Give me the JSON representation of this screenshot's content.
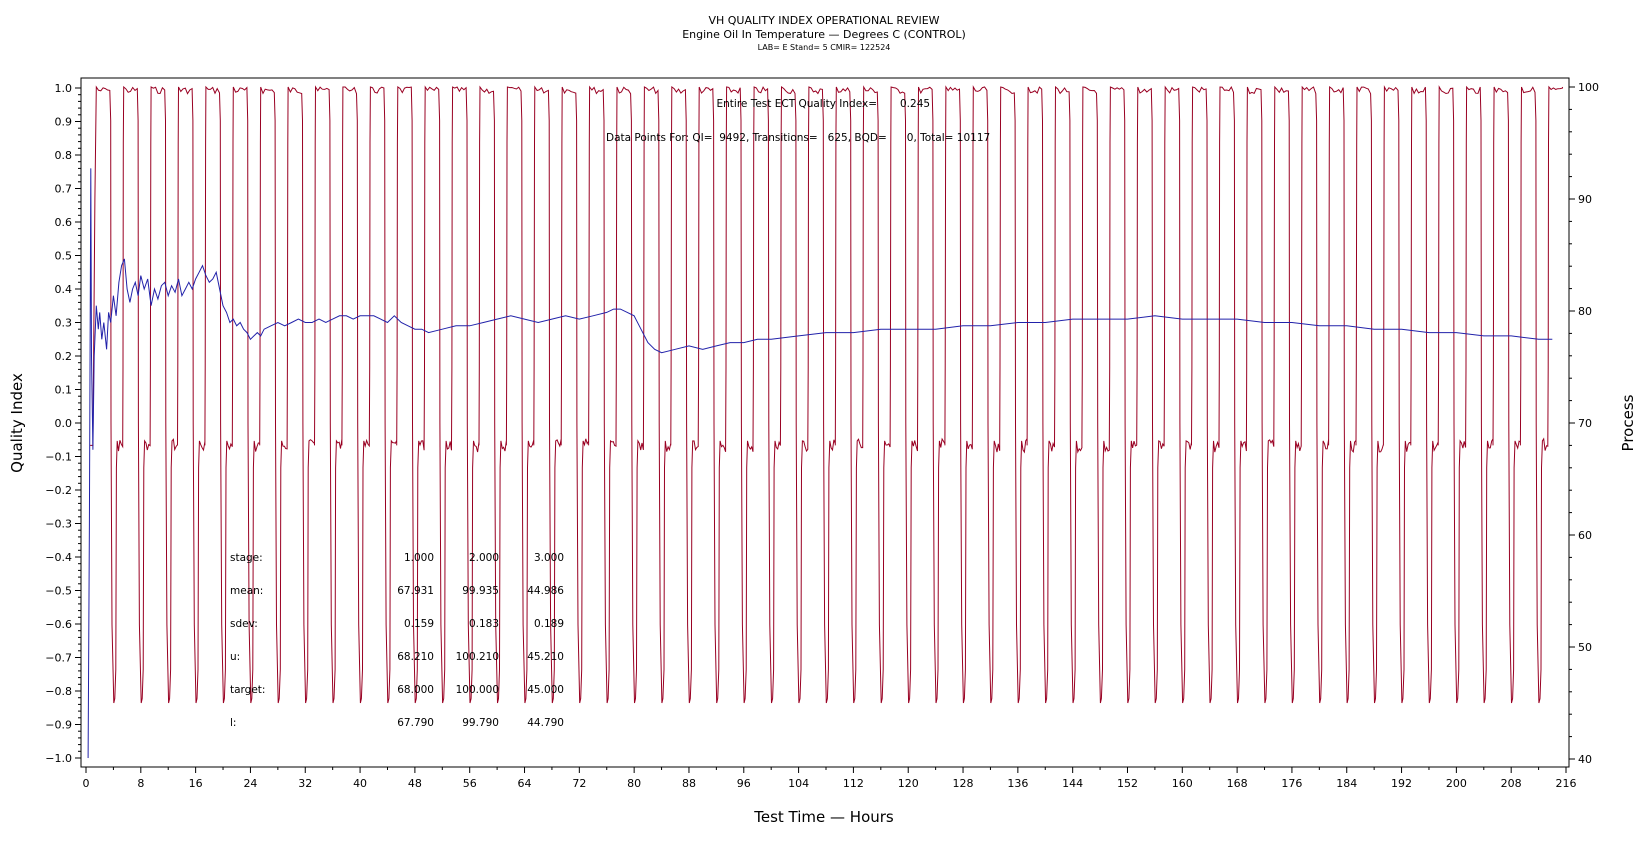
{
  "chart_data": {
    "type": "line",
    "title": "VH QUALITY INDEX OPERATIONAL REVIEW",
    "subtitle": "Engine Oil In Temperature — Degrees C (CONTROL)",
    "subtitle2": "LAB= E Stand= 5 CMIR= 122524",
    "xlabel": "Test Time — Hours",
    "ylabel": "Quality Index",
    "y2label": "Process",
    "xlim": [
      0,
      216
    ],
    "ylim": [
      -1.0,
      1.0
    ],
    "y2lim": [
      40,
      100
    ],
    "xticks": [
      "0",
      "8",
      "16",
      "24",
      "32",
      "40",
      "48",
      "56",
      "64",
      "72",
      "80",
      "88",
      "96",
      "104",
      "112",
      "120",
      "128",
      "136",
      "144",
      "152",
      "160",
      "168",
      "176",
      "184",
      "192",
      "200",
      "208",
      "216"
    ],
    "yticks": [
      "1.0",
      "0.9",
      "0.8",
      "0.7",
      "0.6",
      "0.5",
      "0.4",
      "0.3",
      "0.2",
      "0.1",
      "0.0",
      "-0.1",
      "-0.2",
      "-0.3",
      "-0.4",
      "-0.5",
      "-0.6",
      "-0.7",
      "-0.8",
      "-0.9",
      "-1.0"
    ],
    "y2ticks": [
      "100",
      "90",
      "80",
      "70",
      "60",
      "50",
      "40"
    ],
    "grid": false,
    "annotations": {
      "qi_label": "Entire Test ECT Quality Index=",
      "qi_value": "0.245",
      "points_line": "Data Points For: QI=  9492, Transitions=   625, BQD=      0, Total= 10117"
    },
    "stats_table": {
      "rows": [
        {
          "label": "stage:",
          "values": [
            "1.000",
            "2.000",
            "3.000"
          ]
        },
        {
          "label": "mean:",
          "values": [
            "67.931",
            "99.935",
            "44.986"
          ]
        },
        {
          "label": "sdev:",
          "values": [
            "0.159",
            "0.183",
            "0.189"
          ]
        },
        {
          "label": "u:",
          "values": [
            "68.210",
            "100.210",
            "45.210"
          ]
        },
        {
          "label": "target:",
          "values": [
            "68.000",
            "100.000",
            "45.000"
          ]
        },
        {
          "label": "l:",
          "values": [
            "67.790",
            "99.790",
            "44.790"
          ]
        }
      ]
    },
    "series": [
      {
        "name": "Quality Index",
        "axis": "left",
        "color": "#2222aa",
        "x": [
          0.3,
          0.5,
          0.7,
          0.8,
          1.0,
          1.2,
          1.5,
          1.8,
          2.0,
          2.3,
          2.6,
          3.0,
          3.3,
          3.6,
          4.0,
          4.4,
          4.8,
          5.2,
          5.6,
          6.0,
          6.4,
          6.8,
          7.2,
          7.6,
          8.0,
          8.5,
          9.0,
          9.5,
          10.0,
          10.5,
          11.0,
          11.5,
          12.0,
          12.5,
          13.0,
          13.5,
          14.0,
          14.5,
          15.0,
          15.5,
          16.0,
          16.5,
          17.0,
          17.5,
          18.0,
          18.5,
          19.0,
          19.5,
          20.0,
          20.5,
          21.0,
          21.5,
          22.0,
          22.5,
          23.0,
          23.5,
          24.0,
          24.5,
          25.0,
          25.5,
          26.0,
          27.0,
          28.0,
          29.0,
          30.0,
          31.0,
          32.0,
          33.0,
          34.0,
          35.0,
          36.0,
          37.0,
          38.0,
          39.0,
          40.0,
          41.0,
          42.0,
          43.0,
          44.0,
          45.0,
          46.0,
          47.0,
          48.0,
          49.0,
          50.0,
          52.0,
          54.0,
          56.0,
          58.0,
          60.0,
          62.0,
          64.0,
          66.0,
          68.0,
          70.0,
          72.0,
          74.0,
          76.0,
          77.0,
          78.0,
          79.0,
          80.0,
          81.0,
          82.0,
          83.0,
          84.0,
          86.0,
          88.0,
          90.0,
          92.0,
          94.0,
          96.0,
          98.0,
          100.0,
          104.0,
          108.0,
          112.0,
          116.0,
          120.0,
          124.0,
          128.0,
          132.0,
          136.0,
          140.0,
          144.0,
          148.0,
          152.0,
          156.0,
          160.0,
          164.0,
          168.0,
          172.0,
          176.0,
          180.0,
          184.0,
          188.0,
          192.0,
          196.0,
          200.0,
          204.0,
          208.0,
          212.0,
          214.0
        ],
        "values": [
          -1.0,
          -0.3,
          0.76,
          0.2,
          -0.08,
          0.2,
          0.35,
          0.28,
          0.33,
          0.25,
          0.3,
          0.22,
          0.33,
          0.3,
          0.38,
          0.32,
          0.42,
          0.47,
          0.49,
          0.4,
          0.36,
          0.4,
          0.42,
          0.38,
          0.44,
          0.4,
          0.43,
          0.35,
          0.4,
          0.37,
          0.41,
          0.42,
          0.38,
          0.41,
          0.39,
          0.43,
          0.38,
          0.4,
          0.42,
          0.4,
          0.43,
          0.45,
          0.47,
          0.44,
          0.42,
          0.43,
          0.45,
          0.4,
          0.35,
          0.33,
          0.3,
          0.31,
          0.29,
          0.3,
          0.28,
          0.27,
          0.25,
          0.26,
          0.27,
          0.26,
          0.28,
          0.29,
          0.3,
          0.29,
          0.3,
          0.31,
          0.3,
          0.3,
          0.31,
          0.3,
          0.31,
          0.32,
          0.32,
          0.31,
          0.32,
          0.32,
          0.32,
          0.31,
          0.3,
          0.32,
          0.3,
          0.29,
          0.28,
          0.28,
          0.27,
          0.28,
          0.29,
          0.29,
          0.3,
          0.31,
          0.32,
          0.31,
          0.3,
          0.31,
          0.32,
          0.31,
          0.32,
          0.33,
          0.34,
          0.34,
          0.33,
          0.32,
          0.28,
          0.24,
          0.22,
          0.21,
          0.22,
          0.23,
          0.22,
          0.23,
          0.24,
          0.24,
          0.25,
          0.25,
          0.26,
          0.27,
          0.27,
          0.28,
          0.28,
          0.28,
          0.29,
          0.29,
          0.3,
          0.3,
          0.31,
          0.31,
          0.31,
          0.32,
          0.31,
          0.31,
          0.31,
          0.3,
          0.3,
          0.29,
          0.29,
          0.28,
          0.28,
          0.27,
          0.27,
          0.26,
          0.26,
          0.25,
          0.25
        ]
      },
      {
        "name": "Process",
        "axis": "right",
        "color": "#990022",
        "cycle_hours": 4,
        "levels": [
          68,
          100,
          45
        ],
        "start_hour": 1.5,
        "end_hour": 215
      }
    ]
  }
}
